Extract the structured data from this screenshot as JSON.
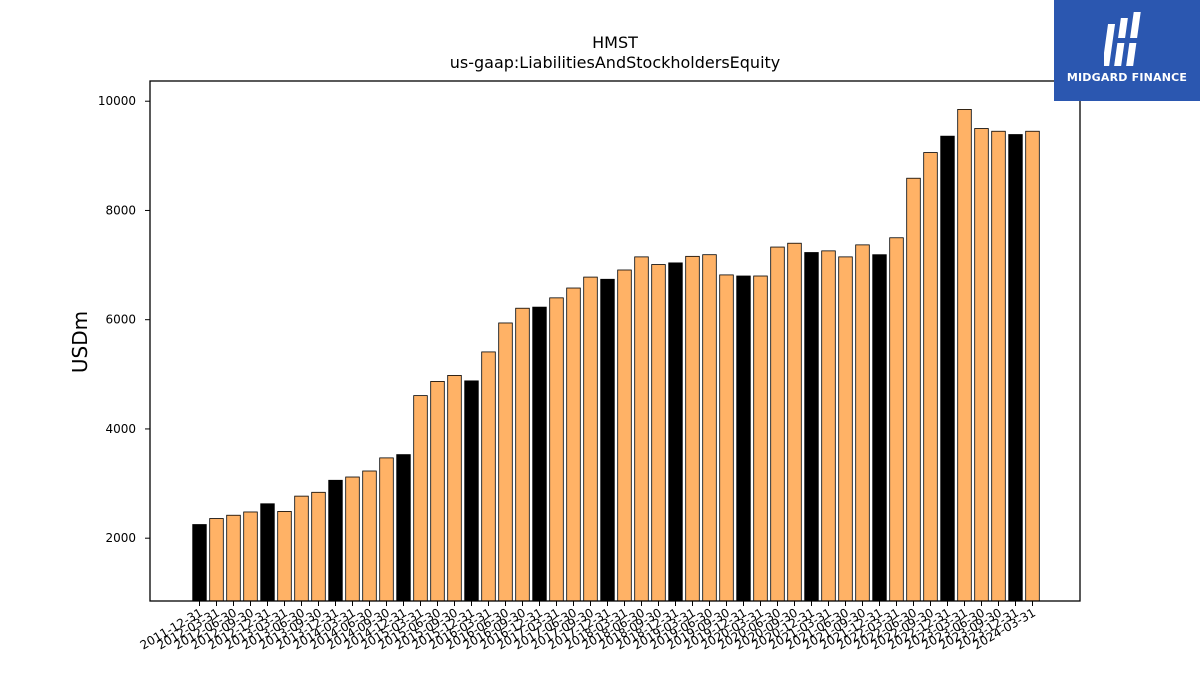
{
  "chart_data": {
    "type": "bar",
    "title": "HMST",
    "subtitle": "us-gaap:LiabilitiesAndStockholdersEquity",
    "xlabel": "",
    "ylabel": "USDm",
    "ylim": [
      850,
      10370
    ],
    "yticks": [
      2000,
      4000,
      6000,
      8000,
      10000
    ],
    "grid": false,
    "colors": {
      "q4": "#000000",
      "quarter": "#ffb266",
      "edge": "#000000"
    },
    "categories": [
      "2011-12-31",
      "2012-03-31",
      "2012-06-30",
      "2012-09-30",
      "2012-12-31",
      "2013-03-31",
      "2013-06-30",
      "2013-09-30",
      "2013-12-31",
      "2014-03-31",
      "2014-06-30",
      "2014-09-30",
      "2014-12-31",
      "2015-03-31",
      "2015-06-30",
      "2015-09-30",
      "2015-12-31",
      "2016-03-31",
      "2016-06-30",
      "2016-09-30",
      "2016-12-31",
      "2017-03-31",
      "2017-06-30",
      "2017-09-30",
      "2017-12-31",
      "2018-03-31",
      "2018-06-30",
      "2018-09-30",
      "2018-12-31",
      "2019-03-31",
      "2019-06-30",
      "2019-09-30",
      "2019-12-31",
      "2020-03-31",
      "2020-06-30",
      "2020-09-30",
      "2020-12-31",
      "2021-03-31",
      "2021-06-30",
      "2021-09-30",
      "2021-12-31",
      "2022-03-31",
      "2022-06-30",
      "2022-09-30",
      "2022-12-31",
      "2023-03-31",
      "2023-06-30",
      "2023-09-30",
      "2023-12-31",
      "2024-03-31"
    ],
    "values": [
      2250,
      2360,
      2420,
      2480,
      2630,
      2490,
      2770,
      2840,
      3060,
      3120,
      3230,
      3470,
      3530,
      4610,
      4870,
      4980,
      4880,
      5410,
      5940,
      6210,
      6230,
      6400,
      6580,
      6780,
      6740,
      6910,
      7150,
      7010,
      7040,
      7160,
      7190,
      6820,
      6800,
      6800,
      7330,
      7400,
      7230,
      7260,
      7150,
      7370,
      7190,
      7500,
      8590,
      9060,
      9360,
      9850,
      9500,
      9450,
      9390,
      9450
    ]
  },
  "logo": {
    "text": "MIDGARD FINANCE",
    "icon": "midgard-logo-icon",
    "color": "#2b57b0"
  }
}
